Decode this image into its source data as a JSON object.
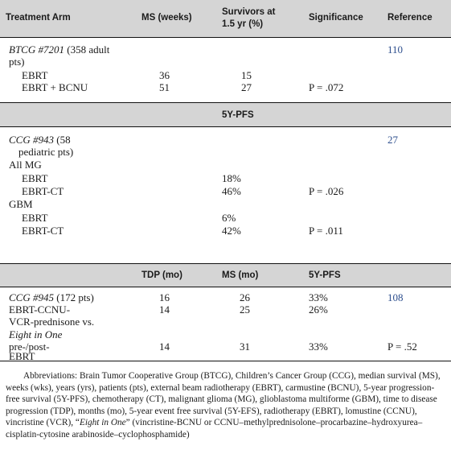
{
  "header": {
    "col1": "Treatment Arm",
    "col2": "MS (weeks)",
    "col3_line1": "Survivors at",
    "col3_line2": "1.5 yr (%)",
    "col4": "Significance",
    "col5": "Reference"
  },
  "section1": {
    "study_italic": "BTCG #7201",
    "study_rest": " (358 adult",
    "study_line2": "pts)",
    "reference": "110",
    "rows": [
      {
        "arm": "EBRT",
        "ms": "36",
        "surv": "15",
        "sig": ""
      },
      {
        "arm": "EBRT + BCNU",
        "ms": "51",
        "surv": "27",
        "sig": "P = .072"
      }
    ]
  },
  "section2": {
    "band_label": "5Y-PFS",
    "study_italic": "CCG #943",
    "study_rest": " (58",
    "study_line2": "pediatric pts)",
    "reference": "27",
    "group1": "All MG",
    "group1_rows": [
      {
        "arm": "EBRT",
        "pfs": "18%",
        "sig": ""
      },
      {
        "arm": "EBRT-CT",
        "pfs": "46%",
        "sig": "P = .026"
      }
    ],
    "group2": "GBM",
    "group2_rows": [
      {
        "arm": "EBRT",
        "pfs": "6%",
        "sig": ""
      },
      {
        "arm": "EBRT-CT",
        "pfs": "42%",
        "sig": "P = .011"
      }
    ]
  },
  "section3": {
    "band_col2": "TDP (mo)",
    "band_col3": "MS (mo)",
    "band_col4": "5Y-PFS",
    "study_italic": "CCG #945",
    "study_rest": " (172 pts)",
    "reference": "108",
    "row1": {
      "tdp": "16",
      "ms": "26",
      "pfs": "33%"
    },
    "row2": {
      "arm_line1": "EBRT-CCNU-",
      "arm_line2": "VCR-prednisone vs.",
      "tdp": "14",
      "ms": "25",
      "pfs": "26%"
    },
    "row3": {
      "arm_line1": "Eight in One",
      "arm_line2": "pre-/post-",
      "arm_line3": "EBRT",
      "tdp": "14",
      "ms": "31",
      "pfs": "33%",
      "sig": "P = .52"
    }
  },
  "footnote": {
    "part1": "Abbreviations: Brain Tumor Cooperative Group (BTCG), Children’s Cancer Group (CCG), median survival (MS), weeks (wks), years (yrs), patients (pts), external beam radiotherapy (EBRT), carmustine (BCNU), 5-year progression-free survival (5Y-PFS), chemotherapy (CT), malignant glioma (MG), glioblastoma multiforme (GBM), time to disease progression (TDP), months (mo), 5-year event free survival (5Y-EFS), radiotherapy (EBRT), lomustine (CCNU), vincristine (VCR), “",
    "italic": "Eight in One",
    "part2": "” (vincristine-BCNU or CCNU–methylprednisolone–procarbazine–hydroxyurea–cisplatin-cytosine arabinoside–cyclophosphamide)"
  }
}
